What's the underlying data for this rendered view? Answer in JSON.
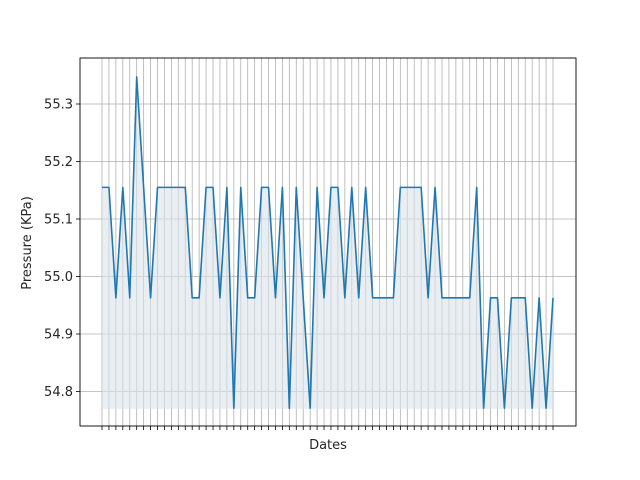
{
  "chart_data": {
    "type": "area",
    "xlabel": "Dates",
    "ylabel": "Pressure (KPa)",
    "ylim": [
      54.74,
      55.38
    ],
    "yticks": [
      54.8,
      54.9,
      55.0,
      55.1,
      55.2,
      55.3
    ],
    "ytick_labels": [
      "54.8",
      "54.9",
      "55.0",
      "55.1",
      "55.2",
      "55.3"
    ],
    "x_tick_labels_visible": false,
    "grid": true,
    "fill_baseline": 54.77,
    "series": [
      {
        "color": "#1f77b4",
        "fill_color": "#d8e2e8",
        "values": [
          55.155,
          55.155,
          54.963,
          55.155,
          54.963,
          55.347,
          55.155,
          54.963,
          55.155,
          55.155,
          55.155,
          55.155,
          55.155,
          54.963,
          54.963,
          55.155,
          55.155,
          54.963,
          55.155,
          54.771,
          55.155,
          54.963,
          54.963,
          55.155,
          55.155,
          54.963,
          55.155,
          54.771,
          55.155,
          54.963,
          54.771,
          55.155,
          54.963,
          55.155,
          55.155,
          54.963,
          55.155,
          54.963,
          55.155,
          54.963,
          54.963,
          54.963,
          54.963,
          55.155,
          55.155,
          55.155,
          55.155,
          54.963,
          55.155,
          54.963,
          54.963,
          54.963,
          54.963,
          54.963,
          55.155,
          54.771,
          54.963,
          54.963,
          54.771,
          54.963,
          54.963,
          54.963,
          54.771,
          54.963,
          54.771,
          54.963
        ]
      }
    ]
  }
}
